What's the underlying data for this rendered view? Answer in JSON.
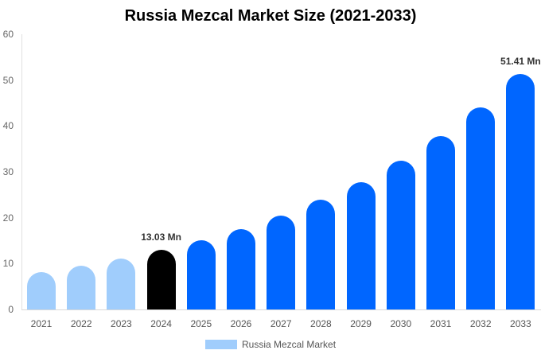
{
  "chart_data": {
    "type": "bar",
    "title": "Russia Mezcal Market Size (2021-2033)",
    "xlabel": "",
    "ylabel": "",
    "ylim": [
      0,
      60
    ],
    "yticks": [
      0,
      10,
      20,
      30,
      40,
      50,
      60
    ],
    "categories": [
      "2021",
      "2022",
      "2023",
      "2024",
      "2025",
      "2026",
      "2027",
      "2028",
      "2029",
      "2030",
      "2031",
      "2032",
      "2033"
    ],
    "series": [
      {
        "name": "Russia Mezcal Market",
        "values": [
          8.1,
          9.5,
          11.1,
          13.03,
          15.1,
          17.5,
          20.4,
          23.9,
          27.7,
          32.4,
          37.8,
          44.0,
          51.41
        ]
      }
    ],
    "annotations": [
      {
        "category": "2024",
        "text": "13.03 Mn"
      },
      {
        "category": "2033",
        "text": "51.41 Mn"
      }
    ],
    "colors": {
      "historical": "#a0cdfc",
      "base_year": "#000000",
      "forecast": "#0066ff"
    },
    "grid": false,
    "legend_position": "bottom"
  },
  "title": "Russia Mezcal Market Size (2021-2033)",
  "legend": {
    "label": "Russia Mezcal Market"
  }
}
